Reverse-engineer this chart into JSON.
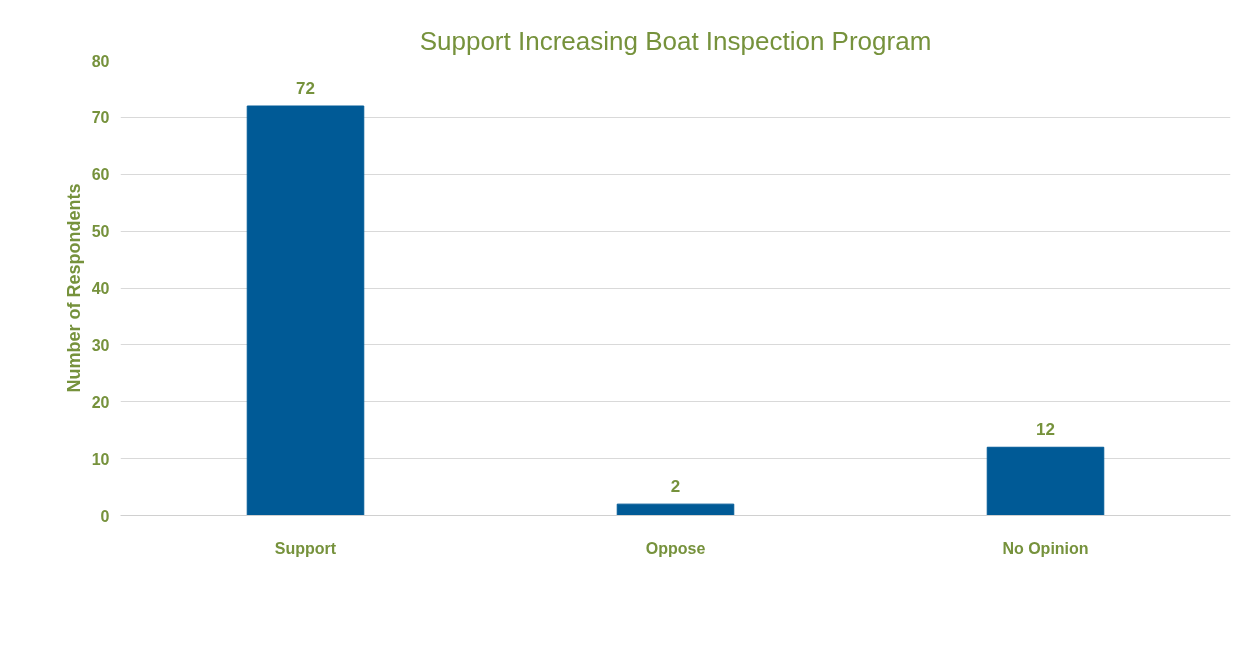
{
  "chart_data": {
    "type": "bar",
    "title": "Support Increasing Boat Inspection Program",
    "ylabel": "Number of Respondents",
    "categories": [
      "Support",
      "Oppose",
      "No Opinion"
    ],
    "values": [
      72,
      2,
      12
    ],
    "color": "#005a96",
    "ylim": [
      0,
      80
    ],
    "yticks": [
      0,
      10,
      20,
      30,
      40,
      50,
      60,
      70,
      80
    ],
    "grid": "y",
    "data_labels": true
  }
}
